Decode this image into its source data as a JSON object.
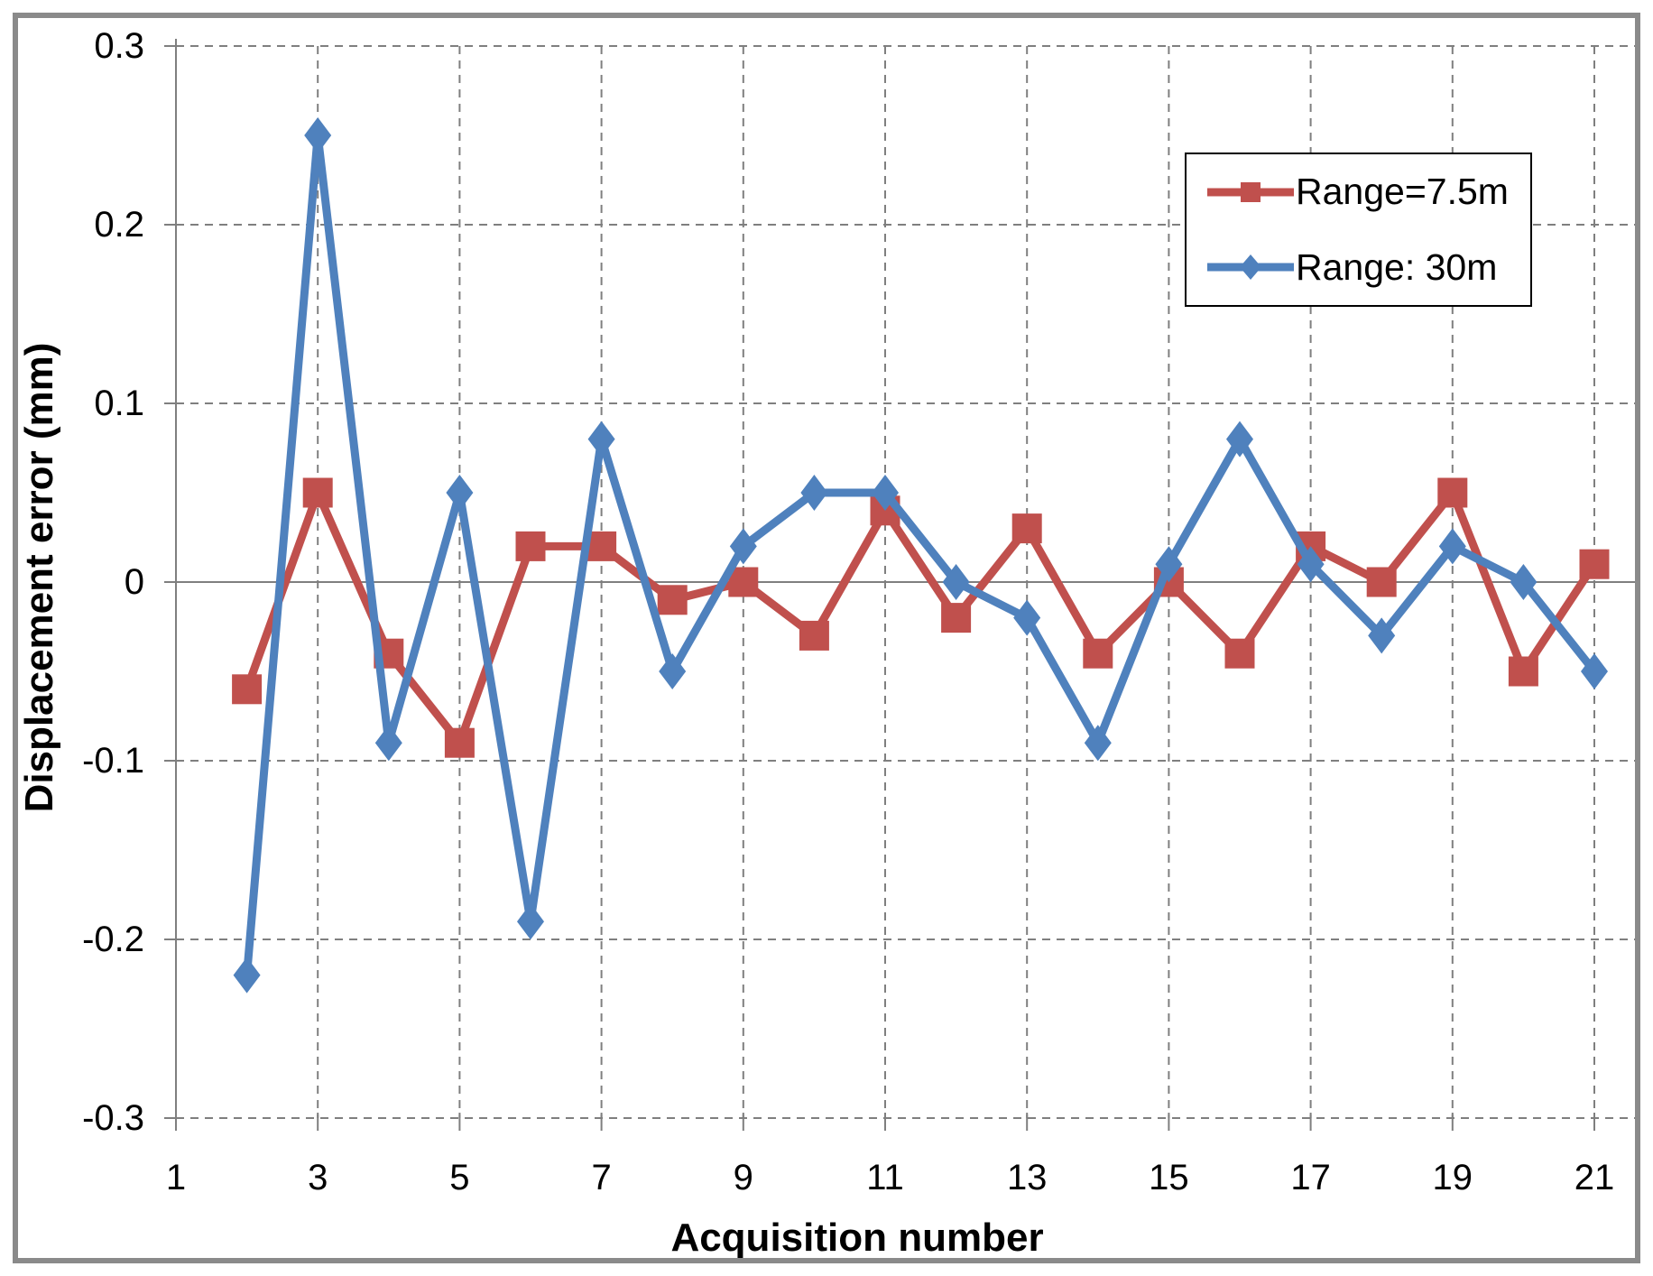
{
  "chart_data": {
    "type": "line",
    "title": "",
    "xlabel": "Acquisition number",
    "ylabel": "Displacement error (mm)",
    "x": [
      2,
      3,
      4,
      5,
      6,
      7,
      8,
      9,
      10,
      11,
      12,
      13,
      14,
      15,
      16,
      17,
      18,
      19,
      20,
      21
    ],
    "series": [
      {
        "name": "Range=7.5m",
        "color": "#C0504D",
        "marker": "square",
        "values": [
          -0.06,
          0.05,
          -0.04,
          -0.09,
          0.02,
          0.02,
          -0.01,
          0.0,
          -0.03,
          0.04,
          -0.02,
          0.03,
          -0.04,
          0.0,
          -0.04,
          0.02,
          0.0,
          0.05,
          -0.05,
          0.01
        ]
      },
      {
        "name": "Range: 30m",
        "color": "#4F81BD",
        "marker": "diamond",
        "values": [
          -0.22,
          0.25,
          -0.09,
          0.05,
          -0.19,
          0.08,
          -0.05,
          0.02,
          0.05,
          0.05,
          0.0,
          -0.02,
          -0.09,
          0.01,
          0.08,
          0.01,
          -0.03,
          0.02,
          0.0,
          -0.05
        ]
      }
    ],
    "xticks": [
      1,
      3,
      5,
      7,
      9,
      11,
      13,
      15,
      17,
      19,
      21
    ],
    "xticklabels": [
      "1",
      "3",
      "5",
      "7",
      "9",
      "11",
      "13",
      "15",
      "17",
      "19",
      "21"
    ],
    "yticks": [
      0.3,
      0.2,
      0.1,
      0,
      -0.1,
      -0.2,
      -0.3
    ],
    "yticklabels": [
      "0.3",
      "0.2",
      "0.1",
      "0",
      "-0.1",
      "-0.2",
      "-0.3"
    ],
    "xlim": [
      1,
      21
    ],
    "ylim": [
      -0.3,
      0.3
    ],
    "grid": "dashed",
    "grid_color": "#7f7f7f",
    "axis_color": "#7f7f7f",
    "legend_position": "top-right"
  }
}
